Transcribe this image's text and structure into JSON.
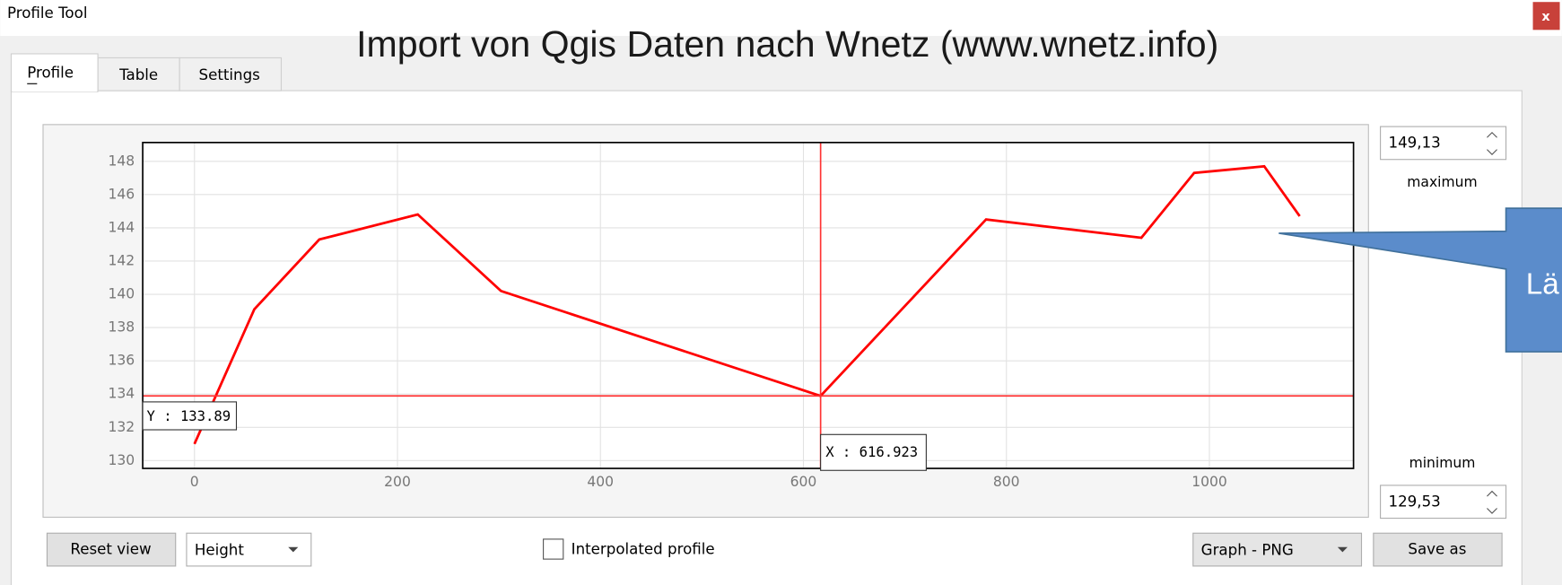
{
  "window": {
    "title": "Profile Tool",
    "close": "x"
  },
  "overlay_title": "Import von Qgis Daten nach Wnetz (www.wnetz.info)",
  "tabs": [
    "Profile",
    "Table",
    "Settings"
  ],
  "chart_data": {
    "type": "line",
    "xlim": [
      -51,
      1142
    ],
    "ylim": [
      129.53,
      149.13
    ],
    "xticks": [
      0,
      200,
      400,
      600,
      800,
      1000
    ],
    "yticks": [
      130,
      132,
      134,
      136,
      138,
      140,
      142,
      144,
      146,
      148
    ],
    "grid": true,
    "series": [
      {
        "color": "#ff0000",
        "x": [
          0,
          59,
          123,
          220,
          302,
          616.923,
          780,
          933,
          985,
          1054,
          1089
        ],
        "values": [
          131.0,
          139.1,
          143.3,
          144.8,
          140.2,
          133.89,
          144.5,
          143.4,
          147.3,
          147.7,
          144.7
        ]
      }
    ],
    "crosshair": {
      "x": 616.923,
      "y": 133.89,
      "x_label": "X : 616.923",
      "y_label": "Y : 133.89",
      "color": "#ff3333"
    }
  },
  "side_controls": {
    "max_value": "149,13",
    "max_label": "maximum",
    "min_label": "minimum",
    "min_value": "129,53"
  },
  "bottom_controls": {
    "reset": "Reset view",
    "mode": "Height",
    "interpolated": "Interpolated profile",
    "export": "Graph - PNG",
    "save": "Save as"
  },
  "callout": {
    "text": "Lä"
  }
}
